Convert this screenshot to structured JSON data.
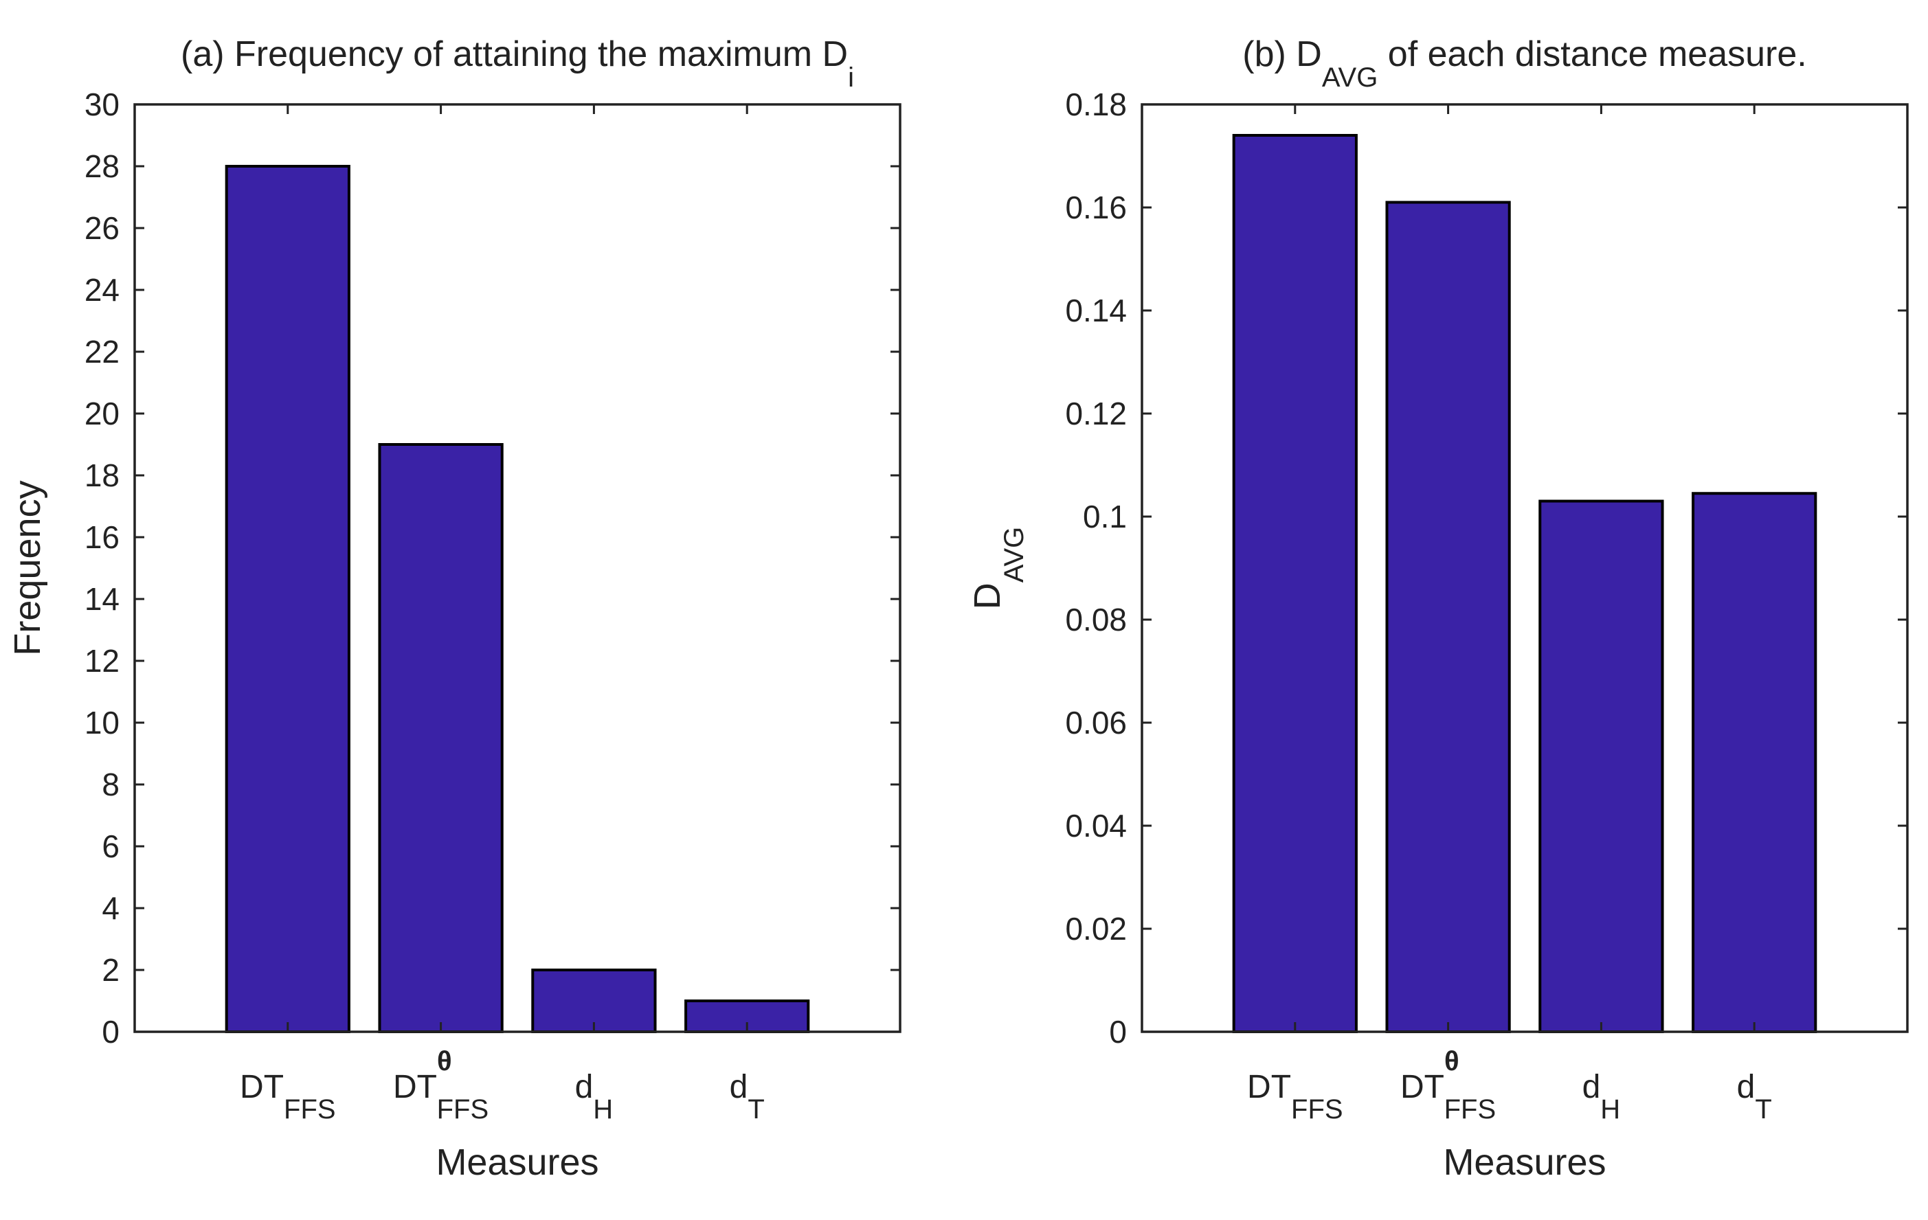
{
  "chart_data": [
    {
      "type": "bar",
      "title": "(a) Frequency of attaining the maximum D",
      "title_subscript": "i",
      "xlabel": "Measures",
      "ylabel": "Frequency",
      "categories": [
        {
          "base": "DT",
          "sub": "FFS",
          "sup": ""
        },
        {
          "base": "DT",
          "sub": "FFS",
          "sup": "θ"
        },
        {
          "base": "d",
          "sub": "H",
          "sup": ""
        },
        {
          "base": "d",
          "sub": "T",
          "sup": ""
        }
      ],
      "values": [
        28,
        19,
        2,
        1
      ],
      "ylim": [
        0,
        30
      ],
      "yticks": [
        0,
        2,
        4,
        6,
        8,
        10,
        12,
        14,
        16,
        18,
        20,
        22,
        24,
        26,
        28,
        30
      ],
      "ytick_labels": [
        "0",
        "2",
        "4",
        "6",
        "8",
        "10",
        "12",
        "14",
        "16",
        "18",
        "20",
        "22",
        "24",
        "26",
        "28",
        "30"
      ],
      "bar_color": "#3a22a6",
      "grid": false
    },
    {
      "type": "bar",
      "title": "(b) D",
      "title_subscript": "AVG",
      "title_suffix": " of each distance measure.",
      "xlabel": "Measures",
      "ylabel": "D",
      "ylabel_subscript": "AVG",
      "categories": [
        {
          "base": "DT",
          "sub": "FFS",
          "sup": ""
        },
        {
          "base": "DT",
          "sub": "FFS",
          "sup": "θ"
        },
        {
          "base": "d",
          "sub": "H",
          "sup": ""
        },
        {
          "base": "d",
          "sub": "T",
          "sup": ""
        }
      ],
      "values": [
        0.174,
        0.161,
        0.103,
        0.1045
      ],
      "ylim": [
        0,
        0.18
      ],
      "yticks": [
        0,
        0.02,
        0.04,
        0.06,
        0.08,
        0.1,
        0.12,
        0.14,
        0.16,
        0.18
      ],
      "ytick_labels": [
        "0",
        "0.02",
        "0.04",
        "0.06",
        "0.08",
        "0.1",
        "0.12",
        "0.14",
        "0.16",
        "0.18"
      ],
      "bar_color": "#3a22a6",
      "grid": false
    }
  ]
}
